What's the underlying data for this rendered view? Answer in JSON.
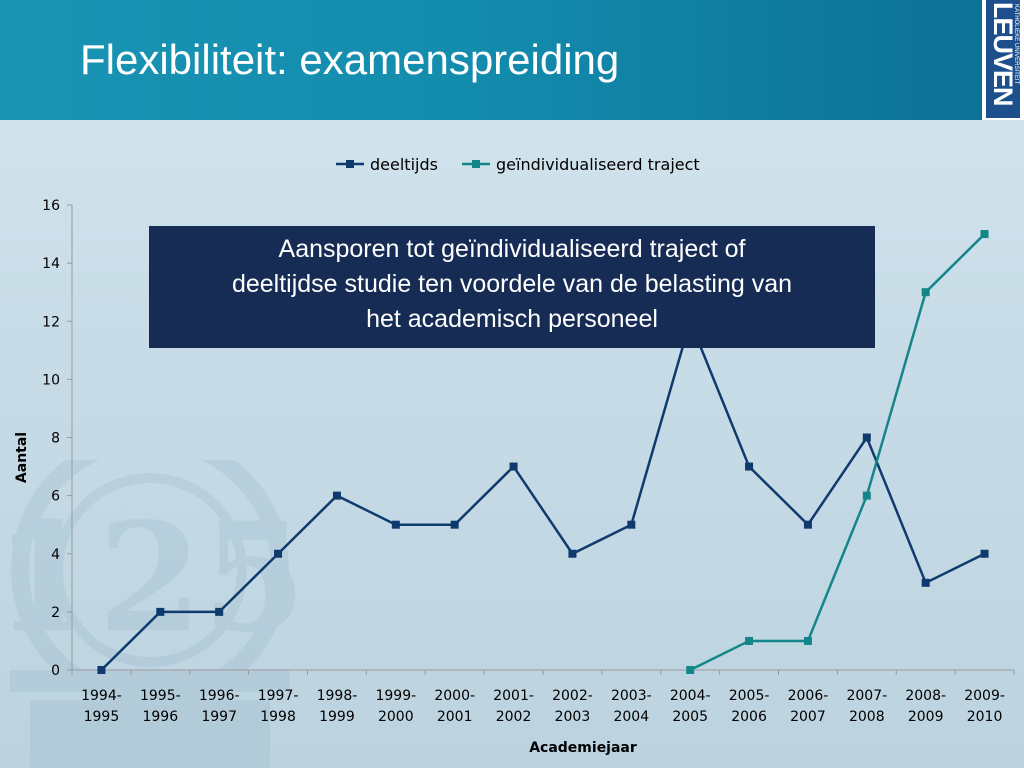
{
  "slide": {
    "title": "Flexibiliteit: examenspreiding",
    "logo_text": "LEUVEN",
    "logo_subtext": "KATHOLIEKE UNIVERSITEIT",
    "watermark_text": "125",
    "callout": [
      "Aansporen tot geïndividualiseerd traject of",
      "deeltijdse studie ten voordele van de belasting van",
      "het academisch personeel"
    ]
  },
  "chart_data": {
    "type": "line",
    "title": "",
    "xlabel": "Academiejaar",
    "ylabel": "Aantal",
    "ylim": [
      0,
      16
    ],
    "yticks": [
      0,
      2,
      4,
      6,
      8,
      10,
      12,
      14,
      16
    ],
    "legend_position": "top",
    "grid": false,
    "categories": [
      [
        "1994-",
        "1995"
      ],
      [
        "1995-",
        "1996"
      ],
      [
        "1996-",
        "1997"
      ],
      [
        "1997-",
        "1998"
      ],
      [
        "1998-",
        "1999"
      ],
      [
        "1999-",
        "2000"
      ],
      [
        "2000-",
        "2001"
      ],
      [
        "2001-",
        "2002"
      ],
      [
        "2002-",
        "2003"
      ],
      [
        "2003-",
        "2004"
      ],
      [
        "2004-",
        "2005"
      ],
      [
        "2005-",
        "2006"
      ],
      [
        "2006-",
        "2007"
      ],
      [
        "2007-",
        "2008"
      ],
      [
        "2008-",
        "2009"
      ],
      [
        "2009-",
        "2010"
      ]
    ],
    "series": [
      {
        "name": "deeltijds",
        "color": "#0f3a6e",
        "values": [
          0,
          2,
          2,
          4,
          6,
          5,
          5,
          7,
          4,
          5,
          12,
          7,
          5,
          8,
          3,
          4
        ]
      },
      {
        "name": "geïndividualiseerd traject",
        "color": "#13868a",
        "values": [
          null,
          null,
          null,
          null,
          null,
          null,
          null,
          null,
          null,
          null,
          0,
          1,
          1,
          6,
          13,
          15
        ]
      }
    ]
  }
}
